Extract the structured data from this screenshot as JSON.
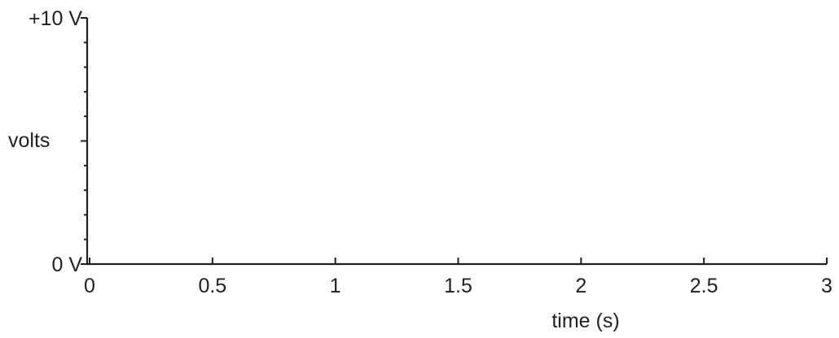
{
  "chart_data": {
    "type": "line",
    "title": "",
    "xlabel": "time (s)",
    "ylabel": "volts",
    "xlim": [
      0,
      3
    ],
    "ylim": [
      0,
      10
    ],
    "x_ticks": [
      0,
      0.5,
      1,
      1.5,
      2,
      2.5,
      3
    ],
    "x_tick_labels": [
      "0",
      "0.5",
      "1",
      "1.5",
      "2",
      "2.5",
      "3"
    ],
    "y_major_ticks": [
      0,
      5,
      10
    ],
    "y_minor_ticks": [
      1,
      2,
      3,
      4,
      6,
      7,
      8,
      9
    ],
    "y_tick_labels": [
      {
        "value": 0,
        "label": "0 V"
      },
      {
        "value": 10,
        "label": "+10 V"
      }
    ],
    "grid": false,
    "series": []
  },
  "colors": {
    "ink": "#231f20",
    "background": "#ffffff"
  }
}
